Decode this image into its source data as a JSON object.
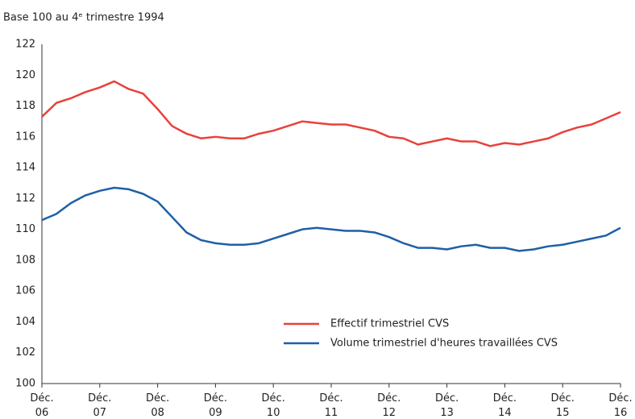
{
  "chart_data": {
    "type": "line",
    "subtitle": "Base 100 au 4ᵉ trimestre 1994",
    "categories": [
      "Déc. 06",
      null,
      null,
      null,
      "Déc. 07",
      null,
      null,
      null,
      "Déc. 08",
      null,
      null,
      null,
      "Déc. 09",
      null,
      null,
      null,
      "Déc. 10",
      null,
      null,
      null,
      "Déc. 11",
      null,
      null,
      null,
      "Déc. 12",
      null,
      null,
      null,
      "Déc. 13",
      null,
      null,
      null,
      "Déc. 14",
      null,
      null,
      null,
      "Déc. 15",
      null,
      null,
      null,
      "Déc. 16"
    ],
    "series": [
      {
        "name": "Effectif trimestriel CVS",
        "color": "#e8413c",
        "values": [
          117.3,
          118.2,
          118.5,
          118.9,
          119.2,
          119.6,
          119.1,
          118.8,
          117.8,
          116.7,
          116.2,
          115.9,
          116.0,
          115.9,
          115.9,
          116.2,
          116.4,
          116.7,
          117.0,
          116.9,
          116.8,
          116.8,
          116.6,
          116.4,
          116.0,
          115.9,
          115.5,
          115.7,
          115.9,
          115.7,
          115.7,
          115.4,
          115.6,
          115.5,
          115.7,
          115.9,
          116.3,
          116.6,
          116.8,
          117.2,
          117.6
        ]
      },
      {
        "name": "Volume trimestriel d'heures travaillées CVS",
        "color": "#1f5fa6",
        "values": [
          110.6,
          111.0,
          111.7,
          112.2,
          112.5,
          112.7,
          112.6,
          112.3,
          111.8,
          110.8,
          109.8,
          109.3,
          109.1,
          109.0,
          109.0,
          109.1,
          109.4,
          109.7,
          110.0,
          110.1,
          110.0,
          109.9,
          109.9,
          109.8,
          109.5,
          109.1,
          108.8,
          108.8,
          108.7,
          108.9,
          109.0,
          108.8,
          108.8,
          108.6,
          108.7,
          108.9,
          109.0,
          109.2,
          109.4,
          109.6,
          110.1
        ]
      }
    ],
    "ylim": [
      100,
      122
    ],
    "yticks": [
      100,
      102,
      104,
      106,
      108,
      110,
      112,
      114,
      116,
      118,
      120,
      122
    ],
    "grid": false
  }
}
